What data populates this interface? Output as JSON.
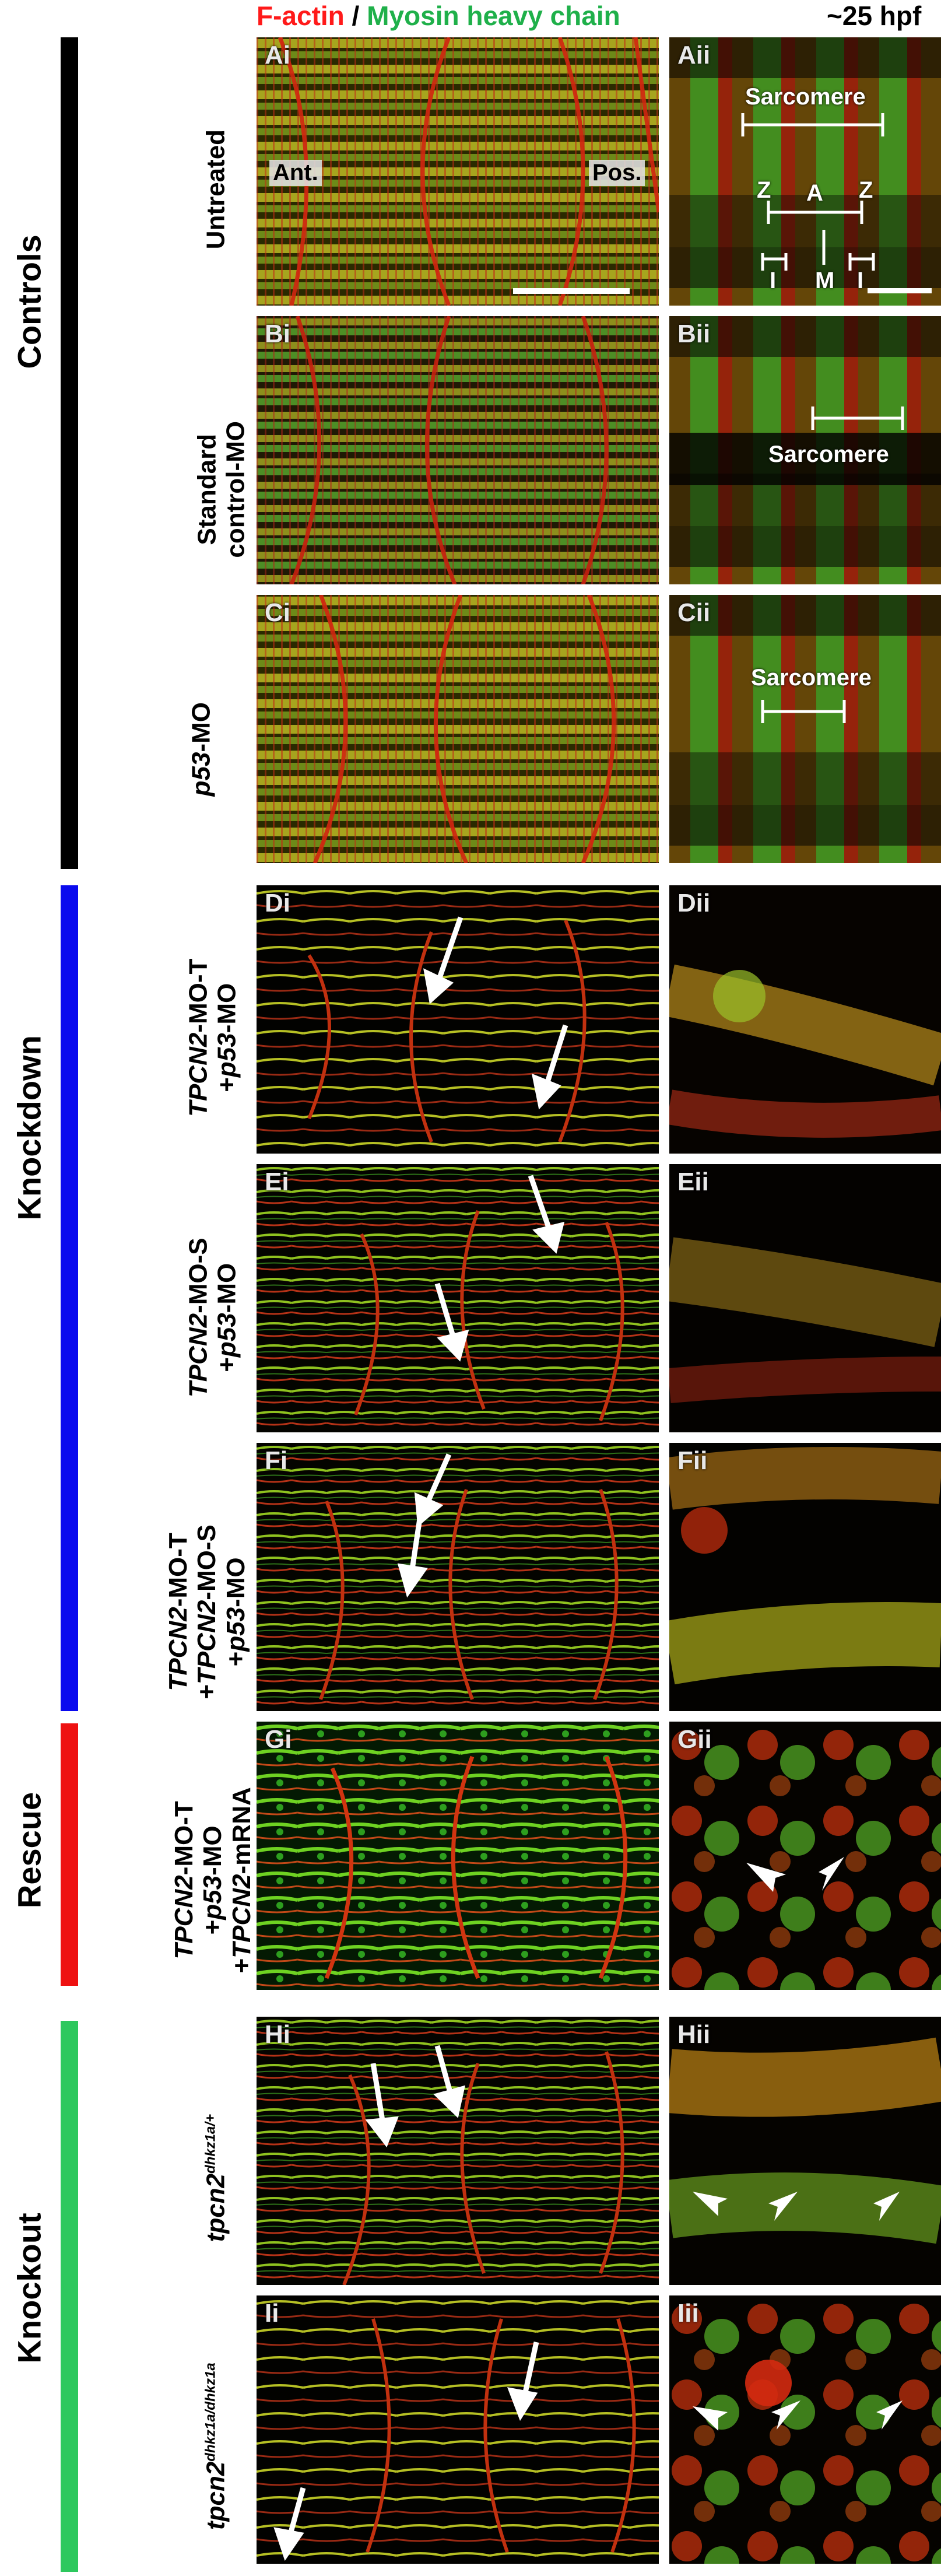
{
  "header": {
    "stain_red": "F-actin",
    "separator": " / ",
    "stain_green": "Myosin heavy chain",
    "stage": "~25 hpf"
  },
  "groups": {
    "controls": "Controls",
    "knockdown": "Knockdown",
    "rescue": "Rescue",
    "knockout": "Knockout"
  },
  "colors": {
    "red": "#ff1a1a",
    "green": "#1fb04a",
    "controls_bar": "#000000",
    "knockdown_bar": "#0a0aee",
    "rescue_bar": "#ee1111",
    "knockout_bar": "#2ec85e"
  },
  "rows": {
    "A": {
      "line1": "Untreated",
      "left_label": "Ai",
      "right_label": "Aii"
    },
    "B": {
      "line1": "Standard",
      "line2": "control-MO",
      "left_label": "Bi",
      "right_label": "Bii"
    },
    "C": {
      "italic1": "p53",
      "rest1": "-MO",
      "left_label": "Ci",
      "right_label": "Cii"
    },
    "D": {
      "italic1": "TPCN2",
      "rest1": "-MO-T",
      "line2": "+",
      "italic2": "p53",
      "rest2": "-MO",
      "left_label": "Di",
      "right_label": "Dii"
    },
    "E": {
      "italic1": "TPCN2",
      "rest1": "-MO-S",
      "line2": "+",
      "italic2": "p53",
      "rest2": "-MO",
      "left_label": "Ei",
      "right_label": "Eii"
    },
    "F": {
      "italic1": "TPCN2",
      "rest1": "-MO-T",
      "line2": "+",
      "italic2": "TPCN2",
      "rest2": "-MO-S",
      "line3": "+",
      "italic3": "p53",
      "rest3": "-MO",
      "left_label": "Fi",
      "right_label": "Fii"
    },
    "G": {
      "italic1": "TPCN2",
      "rest1": "-MO-T",
      "line2": "+",
      "italic2": "p53",
      "rest2": "-MO",
      "line3": "+",
      "italic3": "TPCN2",
      "rest3": "-mRNA",
      "left_label": "Gi",
      "right_label": "Gii"
    },
    "H": {
      "gene": "tpcn2",
      "sup": "dhkz1a/+",
      "left_label": "Hi",
      "right_label": "Hii"
    },
    "I": {
      "gene": "tpcn2",
      "sup": "dhkz1a/dhkz1a",
      "left_label": "Ii",
      "right_label": "Iii"
    }
  },
  "annotations": {
    "ant": "Ant.",
    "pos": "Pos.",
    "sarcomere": "Sarcomere",
    "z": "Z",
    "a": "A",
    "i": "I",
    "m": "M"
  },
  "icons": [
    "arrow-icon",
    "arrowhead-icon",
    "scale-bar"
  ]
}
